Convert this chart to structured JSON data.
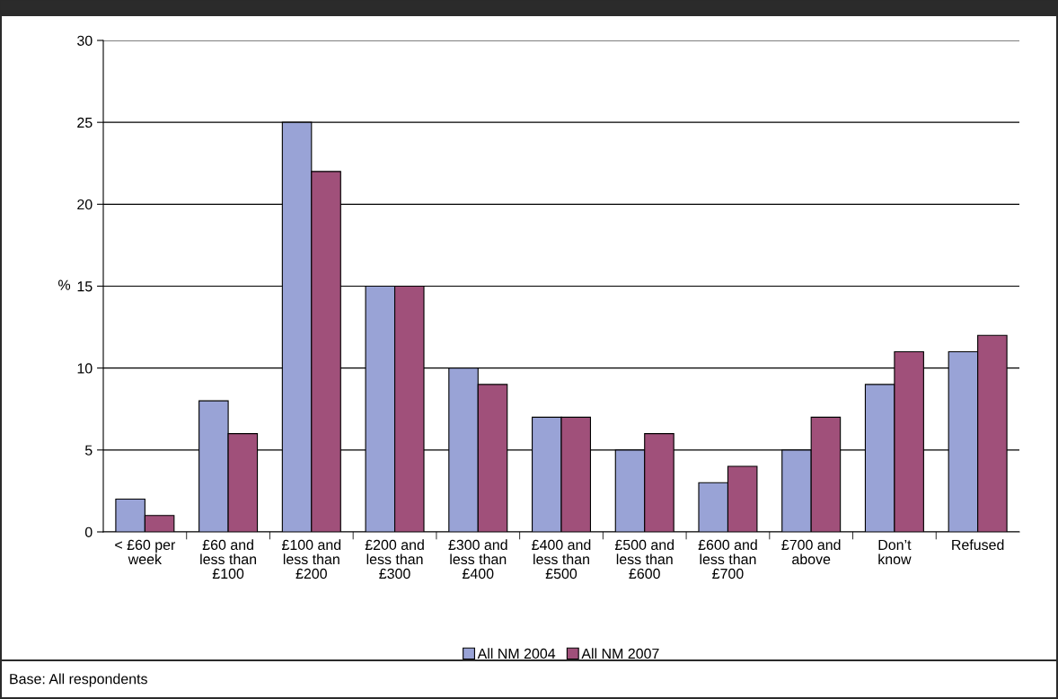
{
  "chart_data": {
    "type": "bar",
    "categories": [
      "< £60 per\nweek",
      "£60 and\nless than\n£100",
      "£100 and\nless than\n£200",
      "£200 and\nless than\n£300",
      "£300 and\nless than\n£400",
      "£400 and\nless than\n£500",
      "£500 and\nless than\n£600",
      "£600 and\nless than\n£700",
      "£700 and\nabove",
      "Don’t\nknow",
      "Refused"
    ],
    "series": [
      {
        "name": "All NM 2004",
        "color": "#99a3d6",
        "values": [
          2,
          8,
          25,
          15,
          10,
          7,
          5,
          3,
          5,
          9,
          11
        ]
      },
      {
        "name": "All NM 2007",
        "color": "#a0507a",
        "values": [
          1,
          6,
          22,
          15,
          9,
          7,
          6,
          4,
          7,
          11,
          12
        ]
      }
    ],
    "ylabel": "%",
    "ylim": [
      0,
      30
    ],
    "yticks": [
      0,
      5,
      10,
      15,
      20,
      25,
      30
    ],
    "grid": "y",
    "legend": "bottom",
    "annotations": [
      "Base: All respondents"
    ]
  }
}
